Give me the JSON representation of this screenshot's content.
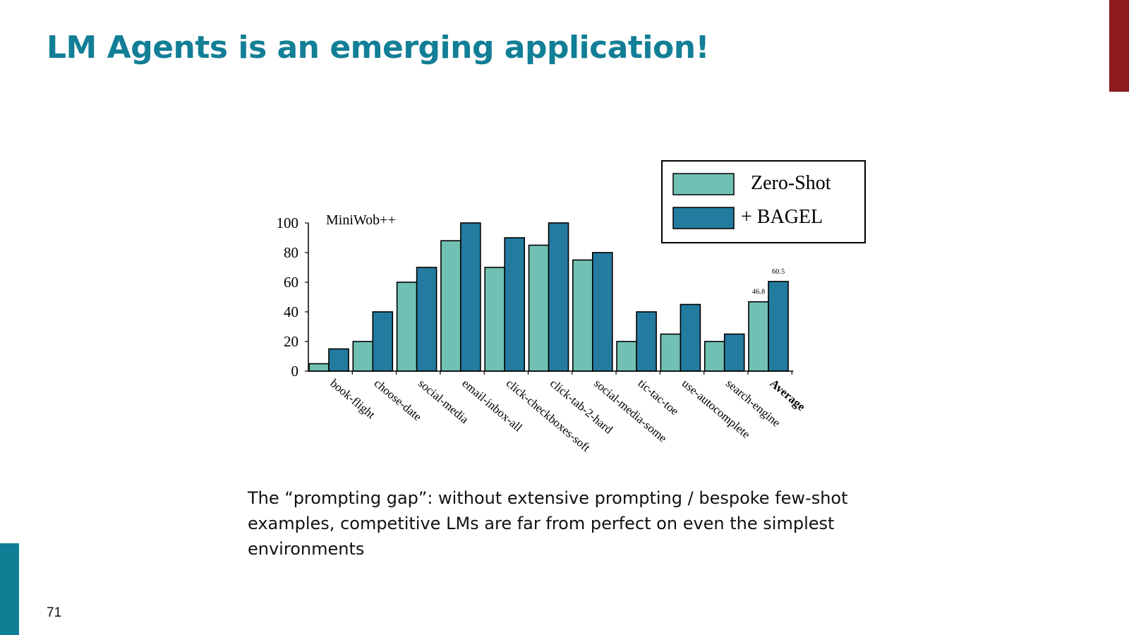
{
  "slide": {
    "title": "LM Agents is an emerging application!",
    "caption": "The “prompting gap”: without extensive prompting / bespoke few-shot examples, competitive LMs are far from perfect on even the simplest environments",
    "page_number": "71"
  },
  "colors": {
    "title": "#127f96",
    "accent_right": "#8e1a1d",
    "accent_left": "#0f7f96"
  },
  "chart_data": {
    "type": "bar",
    "title": "MiniWob++",
    "xlabel": "",
    "ylabel": "",
    "ylim": [
      0,
      100
    ],
    "yticks": [
      0,
      20,
      40,
      60,
      80,
      100
    ],
    "grid": false,
    "legend_position": "top-right",
    "categories": [
      "book-flight",
      "choose-date",
      "social-media",
      "email-inbox-all",
      "click-checkboxes-soft",
      "click-tab-2-hard",
      "social-media-some",
      "tic-tac-toe",
      "use-autocomplete",
      "search-engine",
      "Average"
    ],
    "bold_categories": [
      "Average"
    ],
    "series": [
      {
        "name": "Zero-Shot",
        "color": "#70c1b3",
        "values": [
          5,
          20,
          60,
          88,
          70,
          85,
          75,
          20,
          25,
          20,
          46.8
        ]
      },
      {
        "name": "+ BAGEL",
        "color": "#247ba0",
        "values": [
          15,
          40,
          70,
          100,
          90,
          100,
          80,
          40,
          45,
          25,
          60.5
        ]
      }
    ],
    "data_labels": [
      {
        "series": 0,
        "category": "Average",
        "text": "46.8"
      },
      {
        "series": 1,
        "category": "Average",
        "text": "60.5"
      }
    ]
  }
}
